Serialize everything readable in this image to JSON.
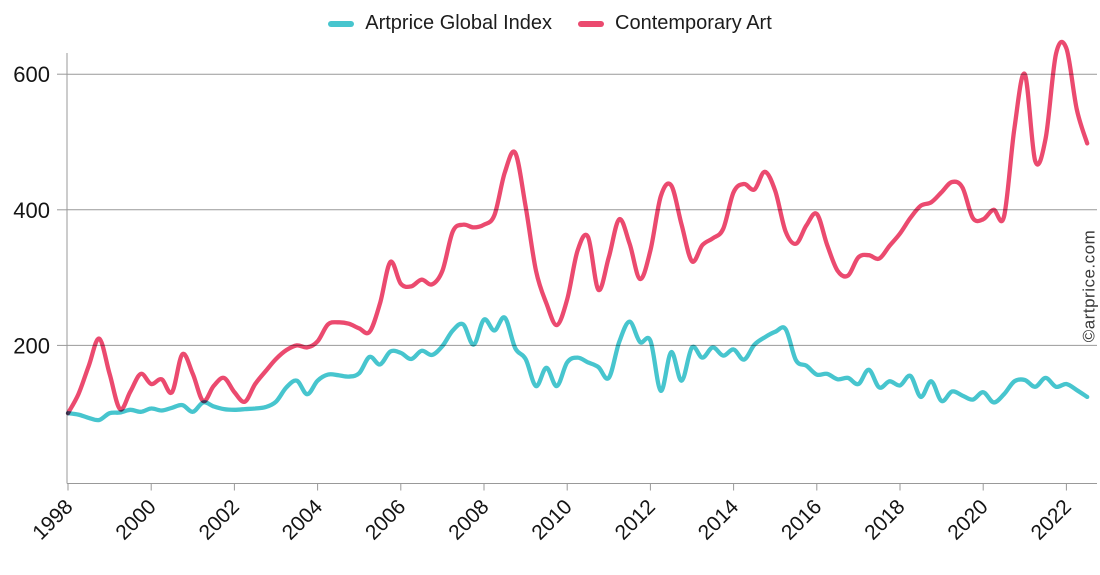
{
  "legend": {
    "items": [
      {
        "label": "Artprice Global Index",
        "color": "#47C5CE"
      },
      {
        "label": "Contemporary Art",
        "color": "#EB4A6F"
      }
    ]
  },
  "watermark": {
    "text": "©artprice.com"
  },
  "colors": {
    "background": "#ffffff",
    "grid": "#999999",
    "axis": "#999999",
    "tick_text": "#141414",
    "watermark_text": "#3a3a3a",
    "artprice_global_index": "#47C5CE",
    "contemporary_art": "#EB4A6F"
  },
  "chart_data": {
    "type": "line",
    "title": "",
    "xlabel": "",
    "ylabel": "",
    "legend_position": "top-center",
    "grid": "horizontal-only",
    "x_tick_rotation": -45,
    "xlim": [
      1998,
      2022.75
    ],
    "ylim": [
      0,
      650
    ],
    "x_ticks": [
      1998,
      2000,
      2002,
      2004,
      2006,
      2008,
      2010,
      2012,
      2014,
      2016,
      2018,
      2020,
      2022
    ],
    "x_tick_labels": [
      "1998",
      "2000",
      "2002",
      "2004",
      "2006",
      "2008",
      "2010",
      "2012",
      "2014",
      "2016",
      "2018",
      "2020",
      "2022"
    ],
    "y_ticks": [
      200,
      400,
      600
    ],
    "y_tick_labels": [
      "200",
      "400",
      "600"
    ],
    "x": [
      1998,
      1998.25,
      1998.5,
      1998.75,
      1999,
      1999.25,
      1999.5,
      1999.75,
      2000,
      2000.25,
      2000.5,
      2000.75,
      2001,
      2001.25,
      2001.5,
      2001.75,
      2002,
      2002.25,
      2002.5,
      2002.75,
      2003,
      2003.25,
      2003.5,
      2003.75,
      2004,
      2004.25,
      2004.5,
      2004.75,
      2005,
      2005.25,
      2005.5,
      2005.75,
      2006,
      2006.25,
      2006.5,
      2006.75,
      2007,
      2007.25,
      2007.5,
      2007.75,
      2008,
      2008.25,
      2008.5,
      2008.75,
      2009,
      2009.25,
      2009.5,
      2009.75,
      2010,
      2010.25,
      2010.5,
      2010.75,
      2011,
      2011.25,
      2011.5,
      2011.75,
      2012,
      2012.25,
      2012.5,
      2012.75,
      2013,
      2013.25,
      2013.5,
      2013.75,
      2014,
      2014.25,
      2014.5,
      2014.75,
      2015,
      2015.25,
      2015.5,
      2015.75,
      2016,
      2016.25,
      2016.5,
      2016.75,
      2017,
      2017.25,
      2017.5,
      2017.75,
      2018,
      2018.25,
      2018.5,
      2018.75,
      2019,
      2019.25,
      2019.5,
      2019.75,
      2020,
      2020.25,
      2020.5,
      2020.75,
      2021,
      2021.25,
      2021.5,
      2021.75,
      2022,
      2022.25,
      2022.5
    ],
    "series": [
      {
        "name": "Artprice Global Index",
        "color": "#47C5CE",
        "values": [
          100,
          98,
          93,
          90,
          100,
          101,
          105,
          102,
          107,
          104,
          108,
          112,
          102,
          116,
          110,
          106,
          105,
          106,
          107,
          109,
          117,
          138,
          148,
          128,
          148,
          157,
          156,
          154,
          159,
          183,
          172,
          191,
          189,
          180,
          192,
          186,
          199,
          222,
          231,
          201,
          238,
          222,
          241,
          196,
          180,
          140,
          167,
          140,
          175,
          182,
          175,
          168,
          152,
          205,
          235,
          205,
          207,
          133,
          190,
          148,
          197,
          182,
          197,
          185,
          194,
          179,
          201,
          212,
          220,
          224,
          178,
          170,
          157,
          158,
          150,
          152,
          143,
          164,
          138,
          147,
          141,
          155,
          124,
          147,
          118,
          132,
          126,
          120,
          131,
          116,
          128,
          147,
          149,
          139,
          152,
          139,
          143,
          134,
          124
        ]
      },
      {
        "name": "Contemporary Art",
        "color": "#EB4A6F",
        "values": [
          100,
          128,
          170,
          210,
          158,
          106,
          132,
          158,
          143,
          150,
          131,
          187,
          158,
          118,
          140,
          152,
          131,
          117,
          143,
          162,
          180,
          193,
          200,
          197,
          206,
          231,
          234,
          232,
          225,
          220,
          262,
          323,
          291,
          287,
          297,
          290,
          310,
          368,
          378,
          374,
          378,
          392,
          455,
          484,
          405,
          310,
          262,
          230,
          268,
          340,
          360,
          282,
          330,
          386,
          350,
          298,
          340,
          420,
          436,
          378,
          324,
          348,
          358,
          372,
          426,
          438,
          430,
          456,
          428,
          368,
          350,
          377,
          394,
          348,
          310,
          303,
          330,
          333,
          328,
          347,
          365,
          388,
          406,
          411,
          426,
          441,
          433,
          388,
          386,
          400,
          390,
          520,
          600,
          472,
          505,
          630,
          638,
          548,
          498
        ]
      }
    ]
  }
}
